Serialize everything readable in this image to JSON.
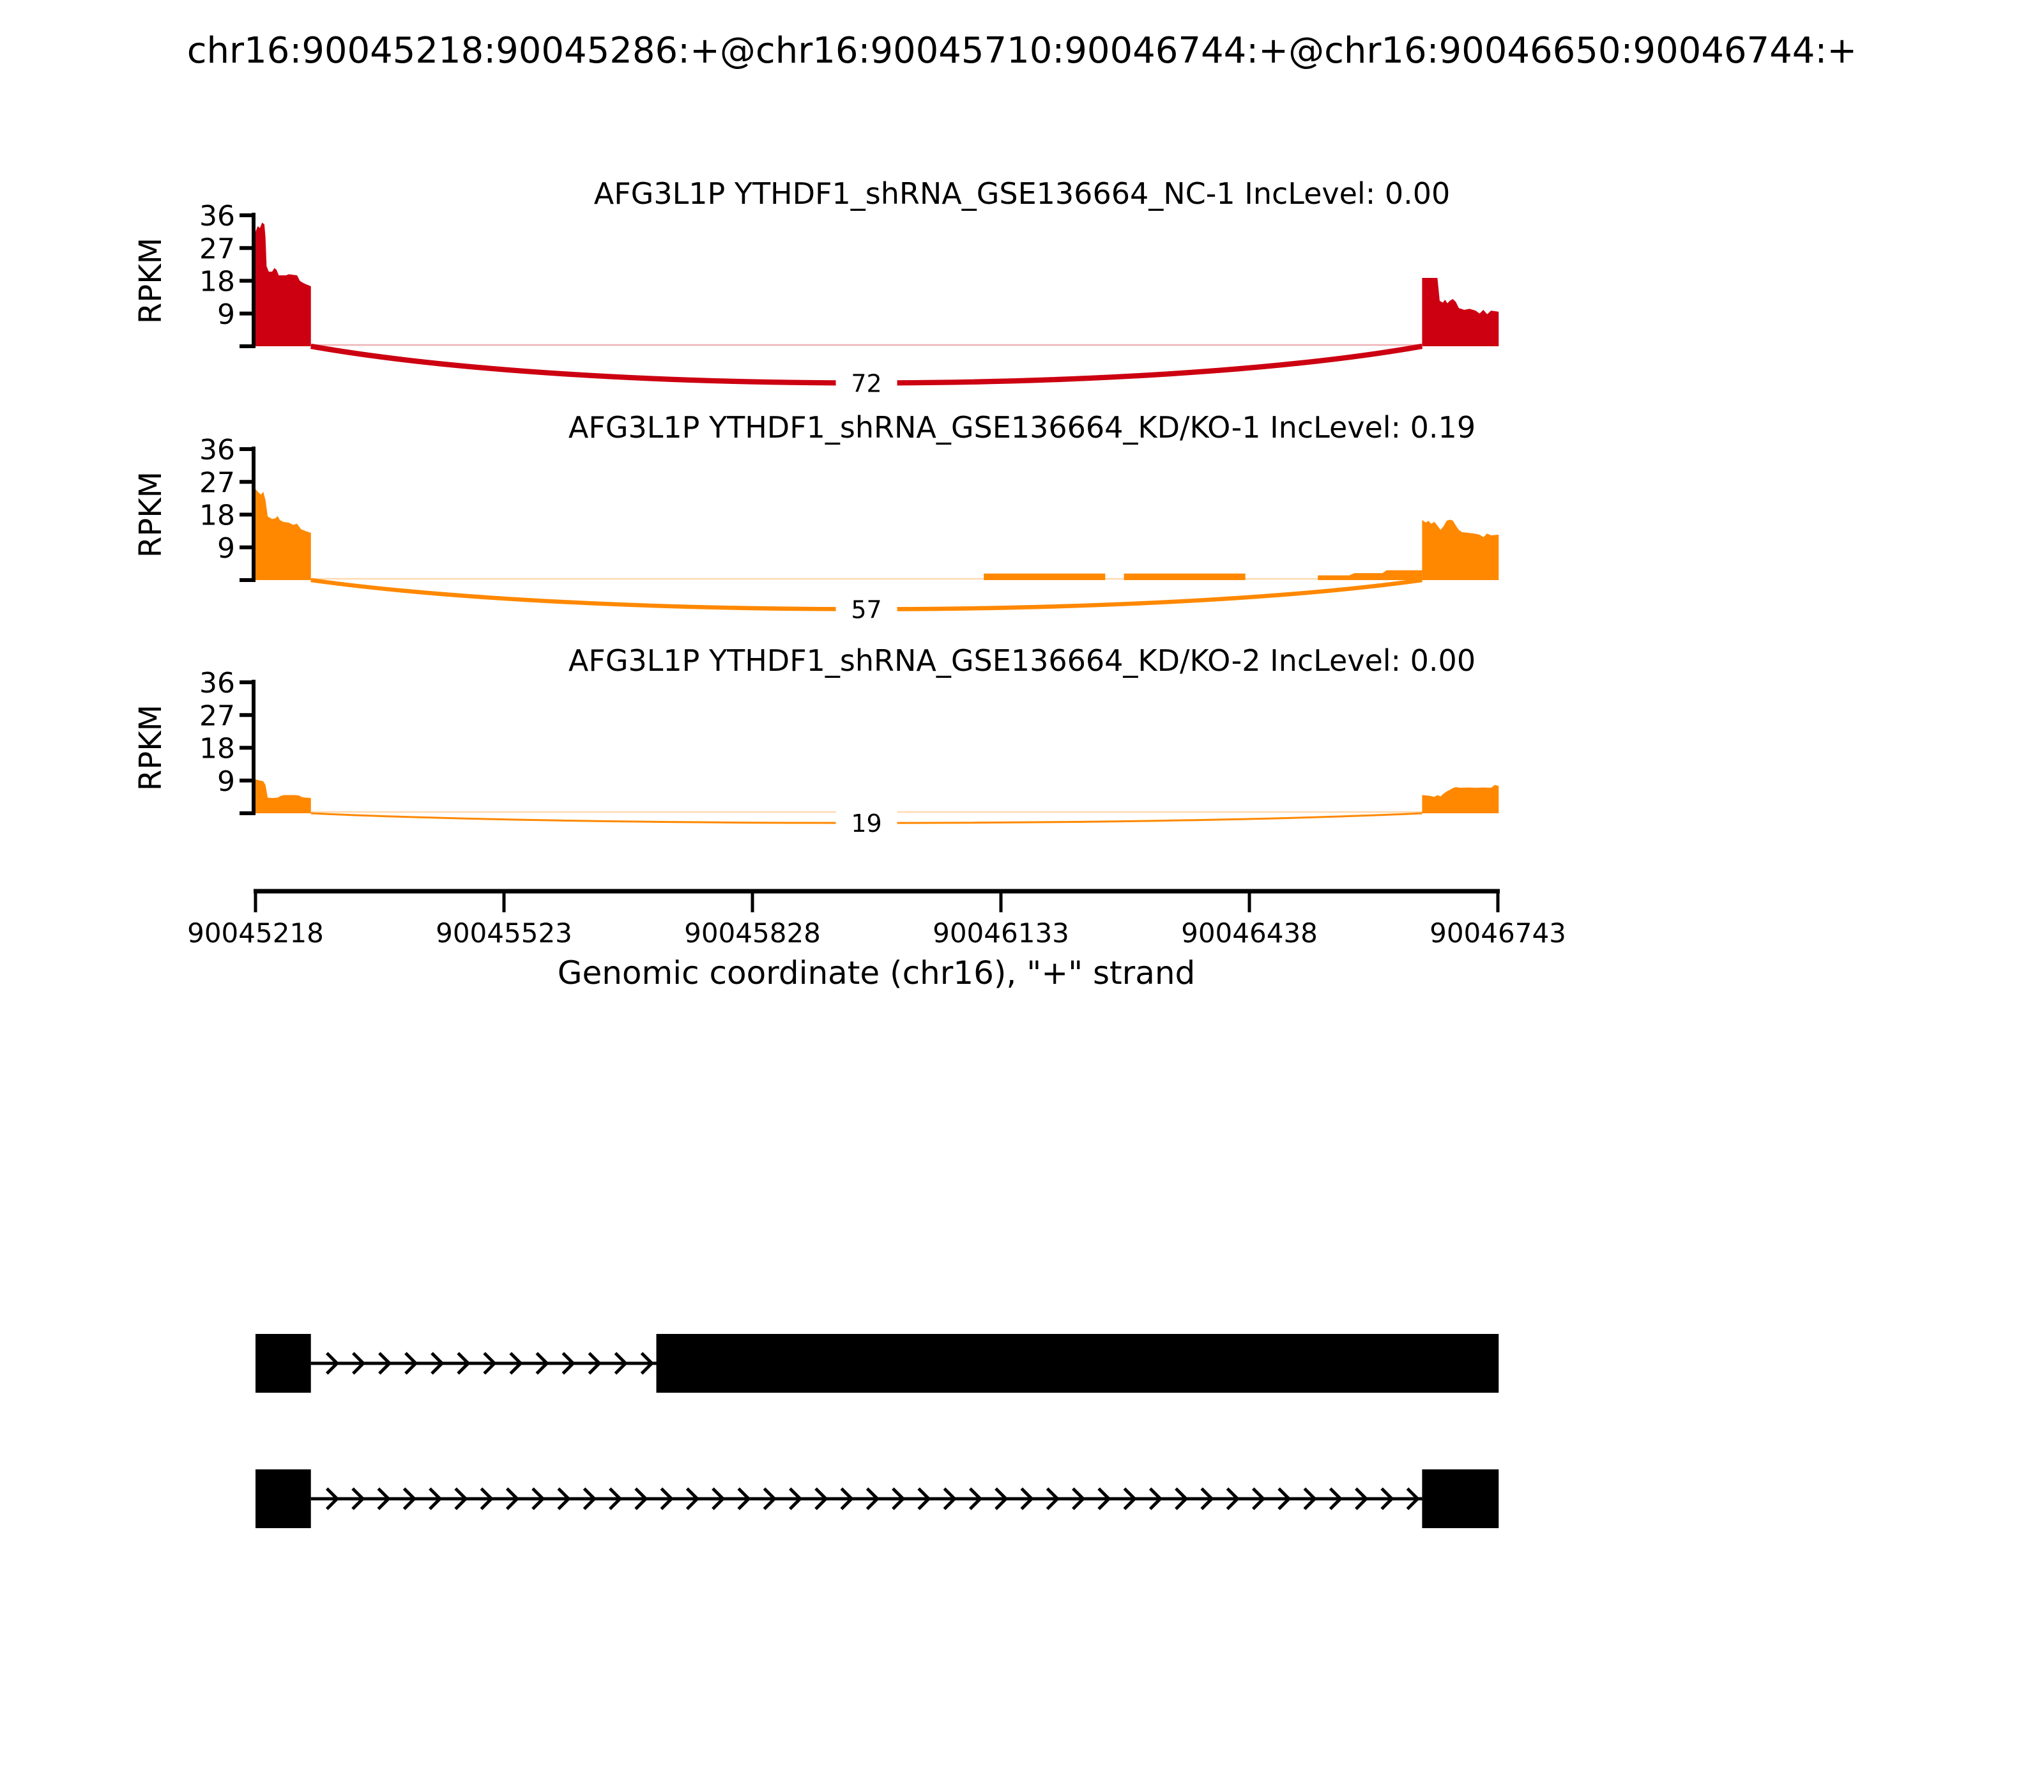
{
  "title": "chr16:90045218:90045286:+@chr16:90045710:90046744:+@chr16:90046650:90046744:+",
  "axes": {
    "y_label": "RPKM",
    "y_ticks": [
      9,
      18,
      27,
      36
    ],
    "y_max": 36,
    "x_label": "Genomic coordinate (chr16), \"+\" strand",
    "x_ticks": [
      90045218,
      90045523,
      90045828,
      90046133,
      90046438,
      90046743
    ],
    "x_range": [
      90045218,
      90046743
    ]
  },
  "chart_data": {
    "type": "area",
    "subtype": "sashimi-plot",
    "x_unit": "genomic coordinate (bp), chr16, + strand",
    "y_unit": "RPKM",
    "tracks": [
      {
        "label": "AFG3L1P YTHDF1_shRNA_GSE136664_NC-1 IncLevel: 0.00",
        "gene": "AFG3L1P",
        "sample": "YTHDF1_shRNA_GSE136664_NC-1",
        "inc_level": "0.00",
        "color": "#CC0011",
        "coverage": [
          {
            "start": 90045218,
            "end": 90045286,
            "profile": [
              [
                0,
                31.5
              ],
              [
                0.04,
                33
              ],
              [
                0.08,
                32.5
              ],
              [
                0.12,
                34
              ],
              [
                0.16,
                33.5
              ],
              [
                0.18,
                30
              ],
              [
                0.2,
                22
              ],
              [
                0.24,
                20.5
              ],
              [
                0.3,
                20.5
              ],
              [
                0.34,
                21.5
              ],
              [
                0.38,
                21
              ],
              [
                0.42,
                19.5
              ],
              [
                0.55,
                19.5
              ],
              [
                0.6,
                19.8
              ],
              [
                0.75,
                19.5
              ],
              [
                0.8,
                18
              ],
              [
                0.85,
                17.5
              ],
              [
                0.92,
                17
              ],
              [
                1,
                16.5
              ]
            ]
          },
          {
            "start": 90046650,
            "end": 90046744,
            "profile": [
              [
                0,
                18.8
              ],
              [
                0.2,
                18.8
              ],
              [
                0.23,
                12.5
              ],
              [
                0.27,
                12
              ],
              [
                0.3,
                12.8
              ],
              [
                0.33,
                11.8
              ],
              [
                0.36,
                12.5
              ],
              [
                0.4,
                13
              ],
              [
                0.44,
                12.2
              ],
              [
                0.48,
                10.5
              ],
              [
                0.55,
                10
              ],
              [
                0.62,
                10.3
              ],
              [
                0.7,
                9.8
              ],
              [
                0.75,
                9
              ],
              [
                0.8,
                10
              ],
              [
                0.85,
                8.8
              ],
              [
                0.9,
                9.8
              ],
              [
                1,
                9.5
              ]
            ]
          }
        ],
        "junctions": [
          {
            "from": 90045286,
            "to": 90046650,
            "reads": 72
          }
        ]
      },
      {
        "label": "AFG3L1P YTHDF1_shRNA_GSE136664_KD/KO-1 IncLevel: 0.19",
        "gene": "AFG3L1P",
        "sample": "YTHDF1_shRNA_GSE136664_KD/KO-1",
        "inc_level": "0.19",
        "color": "#FF8800",
        "coverage": [
          {
            "start": 90045218,
            "end": 90045286,
            "profile": [
              [
                0,
                25
              ],
              [
                0.06,
                24
              ],
              [
                0.1,
                23.5
              ],
              [
                0.14,
                24.3
              ],
              [
                0.18,
                22
              ],
              [
                0.22,
                17.5
              ],
              [
                0.3,
                16.8
              ],
              [
                0.36,
                17
              ],
              [
                0.4,
                17.6
              ],
              [
                0.44,
                16.5
              ],
              [
                0.5,
                16
              ],
              [
                0.6,
                15.8
              ],
              [
                0.68,
                15.2
              ],
              [
                0.75,
                15.5
              ],
              [
                0.82,
                14
              ],
              [
                0.9,
                13.5
              ],
              [
                1,
                13
              ]
            ]
          },
          {
            "start": 90046112,
            "end": 90046261,
            "profile": [
              [
                0,
                1.8
              ],
              [
                1,
                1.8
              ]
            ]
          },
          {
            "start": 90046284,
            "end": 90046433,
            "profile": [
              [
                0,
                1.8
              ],
              [
                1,
                1.8
              ]
            ]
          },
          {
            "start": 90046522,
            "end": 90046650,
            "profile": [
              [
                0,
                1.3
              ],
              [
                0.3,
                1.3
              ],
              [
                0.35,
                1.9
              ],
              [
                0.62,
                1.9
              ],
              [
                0.66,
                2.7
              ],
              [
                1,
                2.7
              ]
            ]
          },
          {
            "start": 90046650,
            "end": 90046744,
            "profile": [
              [
                0,
                16.5
              ],
              [
                0.05,
                15.8
              ],
              [
                0.08,
                16.3
              ],
              [
                0.12,
                15.5
              ],
              [
                0.16,
                16
              ],
              [
                0.2,
                15
              ],
              [
                0.24,
                13.8
              ],
              [
                0.28,
                14.8
              ],
              [
                0.32,
                16.3
              ],
              [
                0.36,
                16.6
              ],
              [
                0.4,
                16.4
              ],
              [
                0.44,
                15
              ],
              [
                0.48,
                13.8
              ],
              [
                0.52,
                13.2
              ],
              [
                0.6,
                13
              ],
              [
                0.68,
                12.8
              ],
              [
                0.75,
                12.5
              ],
              [
                0.8,
                11.8
              ],
              [
                0.85,
                12.8
              ],
              [
                0.9,
                12.3
              ],
              [
                1,
                12.5
              ]
            ]
          }
        ],
        "junctions": [
          {
            "from": 90045286,
            "to": 90046650,
            "reads": 57
          }
        ]
      },
      {
        "label": "AFG3L1P YTHDF1_shRNA_GSE136664_KD/KO-2 IncLevel: 0.00",
        "gene": "AFG3L1P",
        "sample": "YTHDF1_shRNA_GSE136664_KD/KO-2",
        "inc_level": "0.00",
        "color": "#FF8800",
        "coverage": [
          {
            "start": 90045218,
            "end": 90045286,
            "profile": [
              [
                0,
                9.3
              ],
              [
                0.08,
                9
              ],
              [
                0.14,
                8.8
              ],
              [
                0.18,
                7.8
              ],
              [
                0.22,
                4.3
              ],
              [
                0.3,
                4.2
              ],
              [
                0.4,
                4.3
              ],
              [
                0.46,
                4.8
              ],
              [
                0.52,
                5
              ],
              [
                0.6,
                5
              ],
              [
                0.7,
                5
              ],
              [
                0.78,
                4.9
              ],
              [
                0.85,
                4.4
              ],
              [
                1,
                4.2
              ]
            ]
          },
          {
            "start": 90046650,
            "end": 90046744,
            "profile": [
              [
                0,
                5
              ],
              [
                0.1,
                4.8
              ],
              [
                0.16,
                4.5
              ],
              [
                0.2,
                5
              ],
              [
                0.24,
                4.6
              ],
              [
                0.28,
                5.4
              ],
              [
                0.32,
                6
              ],
              [
                0.36,
                6.4
              ],
              [
                0.4,
                6.9
              ],
              [
                0.44,
                7.2
              ],
              [
                0.5,
                7
              ],
              [
                0.6,
                7.1
              ],
              [
                0.7,
                7
              ],
              [
                0.8,
                7.1
              ],
              [
                0.9,
                7
              ],
              [
                0.95,
                7.8
              ],
              [
                1,
                7.5
              ]
            ]
          }
        ],
        "junctions": [
          {
            "from": 90045286,
            "to": 90046650,
            "reads": 19
          }
        ]
      }
    ],
    "transcripts": [
      {
        "exons": [
          [
            90045218,
            90045286
          ],
          [
            90045710,
            90046744
          ]
        ],
        "strand": "+"
      },
      {
        "exons": [
          [
            90045218,
            90045286
          ],
          [
            90046650,
            90046744
          ]
        ],
        "strand": "+"
      }
    ]
  }
}
